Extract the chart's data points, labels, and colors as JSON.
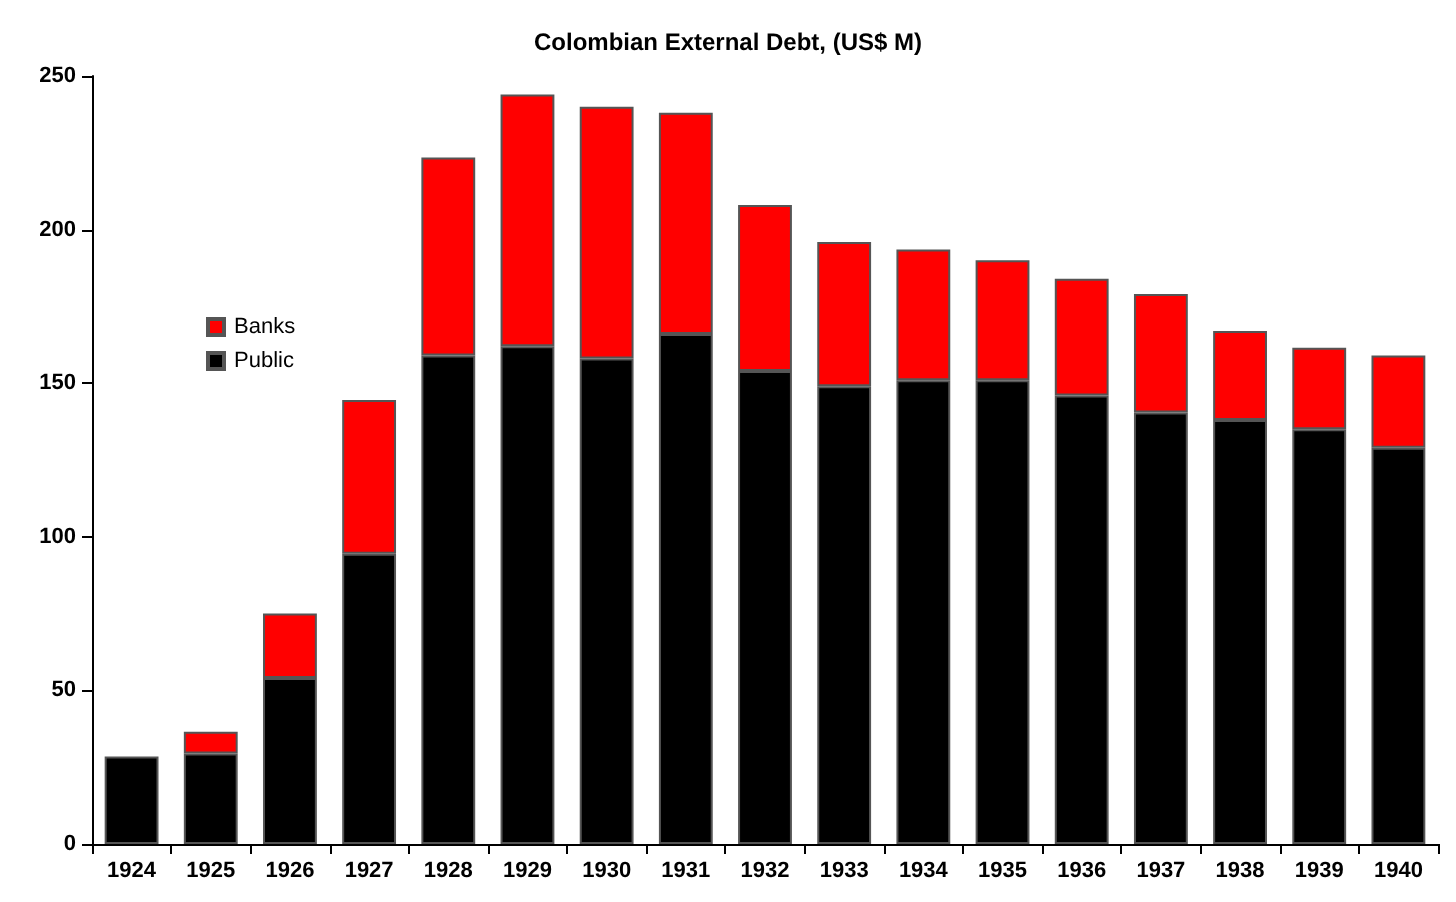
{
  "chart_data": {
    "type": "bar",
    "title": "Colombian External Debt, (US$ M)",
    "stacked": true,
    "legend": "left",
    "grid": false,
    "categories": [
      "1924",
      "1925",
      "1926",
      "1927",
      "1928",
      "1929",
      "1930",
      "1931",
      "1932",
      "1933",
      "1934",
      "1935",
      "1936",
      "1937",
      "1938",
      "1939",
      "1940"
    ],
    "ylim": [
      0,
      250
    ],
    "yticks": [
      0,
      50,
      100,
      150,
      200,
      250
    ],
    "series": [
      {
        "name": "Public",
        "color": "#000000",
        "values": [
          28.5,
          29.5,
          54,
          94.5,
          159,
          162,
          158,
          166,
          154,
          149,
          151,
          151,
          146,
          140.5,
          138,
          135,
          129
        ]
      },
      {
        "name": "Banks",
        "color": "#ff0000",
        "values": [
          null,
          7,
          21,
          50,
          64.5,
          82,
          82,
          72,
          54,
          47,
          42.5,
          39,
          38,
          38.5,
          29,
          26.5,
          30
        ]
      }
    ]
  }
}
